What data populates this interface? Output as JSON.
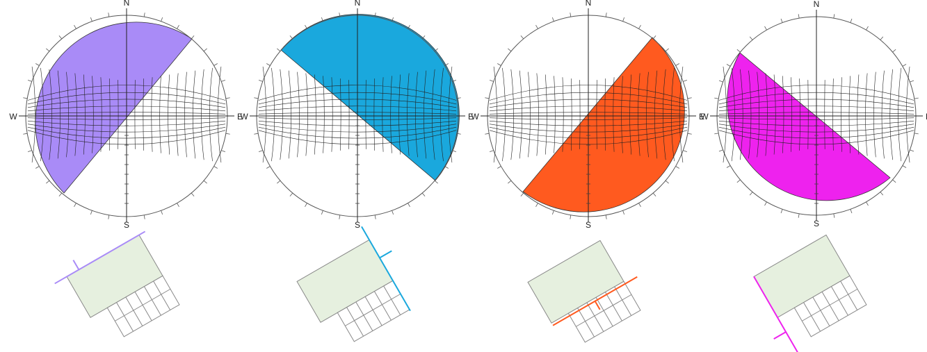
{
  "compass": {
    "north": "N",
    "south": "S",
    "east": "E",
    "west": "W"
  },
  "panels": [
    {
      "id": "panel-1",
      "shading_color": "#a98bf7",
      "wall_color": "#a98bf7"
    },
    {
      "id": "panel-2",
      "shading_color": "#1aa8dd",
      "wall_color": "#1aa8dd"
    },
    {
      "id": "panel-3",
      "shading_color": "#ff5a1f",
      "wall_color": "#ff5a1f"
    },
    {
      "id": "panel-4",
      "shading_color": "#ee22ee",
      "wall_color": "#ee22ee"
    }
  ],
  "colors": {
    "outline": "#555555",
    "grid": "#222222",
    "building_fill": "#e6f0df",
    "scale_text": "#4a6fb0"
  }
}
